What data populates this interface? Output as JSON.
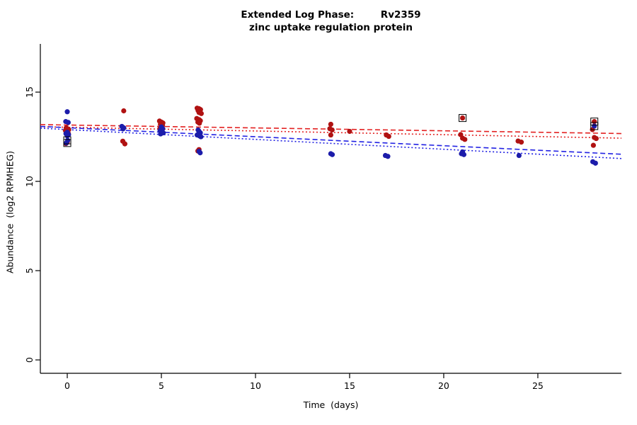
{
  "chart_data": {
    "type": "scatter",
    "title_line1": "Extended Log Phase:        Rv2359",
    "title_line2": "zinc uptake regulation protein",
    "xlabel": "Time  (days)",
    "ylabel": "Abundance  (log2 RPMHEG)",
    "xlim": [
      -1.43,
      29.44
    ],
    "ylim": [
      -0.75,
      17.7
    ],
    "xticks": [
      0,
      5,
      10,
      15,
      20,
      25
    ],
    "yticks": [
      0,
      5,
      10,
      15
    ],
    "grid": false,
    "legend": "none",
    "series": [
      {
        "name": "red-condition",
        "color": "#b01212",
        "points": [
          [
            -0.05,
            13.0
          ],
          [
            0.08,
            12.9
          ],
          [
            -0.1,
            12.85
          ],
          [
            0.0,
            12.78
          ],
          [
            0.06,
            12.68
          ],
          [
            0.0,
            12.2
          ],
          [
            -0.07,
            12.12
          ],
          [
            3.0,
            13.95
          ],
          [
            2.95,
            12.25
          ],
          [
            3.06,
            12.1
          ],
          [
            4.9,
            13.38
          ],
          [
            5.0,
            13.32
          ],
          [
            5.08,
            13.27
          ],
          [
            4.95,
            13.2
          ],
          [
            5.06,
            13.14
          ],
          [
            5.0,
            13.08
          ],
          [
            4.92,
            12.95
          ],
          [
            6.9,
            14.1
          ],
          [
            7.0,
            14.07
          ],
          [
            7.08,
            14.02
          ],
          [
            6.95,
            13.97
          ],
          [
            7.05,
            13.92
          ],
          [
            7.0,
            13.86
          ],
          [
            7.12,
            13.8
          ],
          [
            6.88,
            13.52
          ],
          [
            7.0,
            13.46
          ],
          [
            7.07,
            13.4
          ],
          [
            6.94,
            13.32
          ],
          [
            7.02,
            13.26
          ],
          [
            7.0,
            11.78
          ],
          [
            6.94,
            11.7
          ],
          [
            14.0,
            13.2
          ],
          [
            13.95,
            12.95
          ],
          [
            14.07,
            12.88
          ],
          [
            14.0,
            12.6
          ],
          [
            15.0,
            12.8
          ],
          [
            16.95,
            12.6
          ],
          [
            17.08,
            12.52
          ],
          [
            21.0,
            13.55
          ],
          [
            20.9,
            12.62
          ],
          [
            21.0,
            12.42
          ],
          [
            21.12,
            12.35
          ],
          [
            23.95,
            12.26
          ],
          [
            24.12,
            12.2
          ],
          [
            28.0,
            13.35
          ],
          [
            27.9,
            12.9
          ],
          [
            28.0,
            12.46
          ],
          [
            28.1,
            12.4
          ],
          [
            27.95,
            12.02
          ]
        ]
      },
      {
        "name": "blue-condition",
        "color": "#1c1caa",
        "points": [
          [
            0.0,
            13.9
          ],
          [
            -0.08,
            13.35
          ],
          [
            0.05,
            13.3
          ],
          [
            0.0,
            12.75
          ],
          [
            -0.07,
            12.68
          ],
          [
            0.07,
            12.62
          ],
          [
            0.0,
            12.55
          ],
          [
            0.02,
            12.3
          ],
          [
            -0.05,
            12.15
          ],
          [
            2.9,
            13.08
          ],
          [
            3.0,
            13.0
          ],
          [
            2.96,
            12.94
          ],
          [
            5.0,
            13.05
          ],
          [
            5.07,
            12.95
          ],
          [
            4.93,
            12.85
          ],
          [
            5.0,
            12.78
          ],
          [
            5.1,
            12.72
          ],
          [
            4.96,
            12.66
          ],
          [
            6.95,
            12.88
          ],
          [
            7.0,
            12.8
          ],
          [
            7.07,
            12.72
          ],
          [
            6.9,
            12.6
          ],
          [
            7.02,
            12.55
          ],
          [
            7.1,
            12.5
          ],
          [
            7.0,
            11.68
          ],
          [
            7.06,
            11.6
          ],
          [
            14.0,
            11.55
          ],
          [
            14.08,
            11.5
          ],
          [
            16.9,
            11.45
          ],
          [
            17.03,
            11.4
          ],
          [
            21.0,
            11.65
          ],
          [
            20.94,
            11.55
          ],
          [
            21.07,
            11.5
          ],
          [
            24.0,
            11.45
          ],
          [
            28.0,
            13.1
          ],
          [
            27.92,
            11.1
          ],
          [
            28.06,
            11.02
          ]
        ]
      }
    ],
    "highlighted_points": {
      "marker": "open-square",
      "color": "#000000",
      "points": [
        [
          0.0,
          12.3
        ],
        [
          0.0,
          12.15
        ],
        [
          21.0,
          13.55
        ],
        [
          28.0,
          13.35
        ],
        [
          28.0,
          13.1
        ]
      ]
    },
    "trend_lines": [
      {
        "name": "red-trend-dashed",
        "color": "#e32222",
        "dash": "7,4",
        "x": [
          -1.43,
          29.44
        ],
        "y": [
          13.18,
          12.68
        ]
      },
      {
        "name": "red-trend-dotted",
        "color": "#e32222",
        "dash": "2,3",
        "x": [
          -1.43,
          29.44
        ],
        "y": [
          13.06,
          12.42
        ]
      },
      {
        "name": "blue-trend-dashed",
        "color": "#2222e3",
        "dash": "7,4",
        "x": [
          -1.43,
          29.44
        ],
        "y": [
          13.08,
          11.52
        ]
      },
      {
        "name": "blue-trend-dotted",
        "color": "#2222e3",
        "dash": "2,3",
        "x": [
          -1.43,
          29.44
        ],
        "y": [
          12.98,
          11.28
        ]
      }
    ]
  }
}
